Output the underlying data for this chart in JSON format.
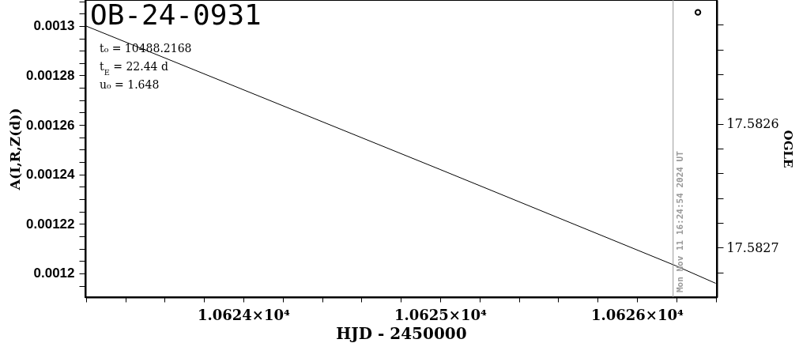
{
  "chart_data": {
    "type": "line",
    "title": "OB-24-0931",
    "xlabel": "HJD - 2450000",
    "ylabel": "A(I,R,Z(d))",
    "y2label": "OGLE",
    "annotations": [
      "t₀ = 10488.2168",
      "t$_{E}$ = 22.44 d",
      "u₀ = 1.648",
      {
        "text": "Mon Nov 11 16:24:54 2024 UT",
        "x": 10626.184,
        "y": 0.0011923
      }
    ],
    "xlim": [
      10623.197,
      10626.406
    ],
    "xticks": [
      {
        "value": 10623.2,
        "label": null
      },
      {
        "value": 10623.4,
        "label": null
      },
      {
        "value": 10623.6,
        "label": null
      },
      {
        "value": 10623.8,
        "label": null
      },
      {
        "value": 10624,
        "label": "1.0624×10⁴"
      },
      {
        "value": 10624.2,
        "label": null
      },
      {
        "value": 10624.4,
        "label": null
      },
      {
        "value": 10624.6,
        "label": null
      },
      {
        "value": 10624.8,
        "label": null
      },
      {
        "value": 10625,
        "label": "1.0625×10⁴"
      },
      {
        "value": 10625.2,
        "label": null
      },
      {
        "value": 10625.4,
        "label": null
      },
      {
        "value": 10625.6,
        "label": null
      },
      {
        "value": 10625.8,
        "label": null
      },
      {
        "value": 10626,
        "label": "1.0626×10⁴"
      },
      {
        "value": 10626.2,
        "label": null
      },
      {
        "value": 10626.4,
        "label": null
      }
    ],
    "ylim": [
      0.0011904,
      0.0013105
    ],
    "yticks": [
      {
        "value": 0.001195,
        "label": null
      },
      0.0012,
      {
        "value": 0.001205,
        "label": null
      },
      {
        "value": 0.00121,
        "label": null
      },
      {
        "value": 0.001215,
        "label": null
      },
      0.00122,
      {
        "value": 0.001225,
        "label": null
      },
      {
        "value": 0.00123,
        "label": null
      },
      {
        "value": 0.001235,
        "label": null
      },
      0.00124,
      {
        "value": 0.001245,
        "label": null
      },
      {
        "value": 0.00125,
        "label": null
      },
      {
        "value": 0.001255,
        "label": null
      },
      0.00126,
      {
        "value": 0.001265,
        "label": null
      },
      {
        "value": 0.00127,
        "label": null
      },
      {
        "value": 0.001275,
        "label": null
      },
      0.00128,
      {
        "value": 0.001285,
        "label": null
      },
      {
        "value": 0.00129,
        "label": null
      },
      {
        "value": 0.001295,
        "label": null
      },
      0.0013,
      {
        "value": 0.001305,
        "label": null
      },
      {
        "value": 0.00131,
        "label": null
      }
    ],
    "y2lim": [
      17.58274,
      17.5825
    ],
    "y2ticks": [
      {
        "value": 17.58252,
        "label": null
      },
      {
        "value": 17.58254,
        "label": null
      },
      {
        "value": 17.58256,
        "label": null
      },
      {
        "value": 17.58258,
        "label": null
      },
      17.5826,
      {
        "value": 17.58262,
        "label": null
      },
      {
        "value": 17.58264,
        "label": null
      },
      {
        "value": 17.58266,
        "label": null
      },
      {
        "value": 17.58268,
        "label": null
      },
      17.5827,
      {
        "value": 17.58272,
        "label": null
      }
    ],
    "grid": false,
    "ref_lines": [
      {
        "axis": "x",
        "value": 10626.184,
        "color": "#999999"
      }
    ],
    "series": [
      {
        "color": "#000000",
        "x": [
          10623.2,
          10625,
          10626.2,
          10626.4
        ],
        "values": [
          0.0013,
          0.001242,
          0.001203,
          0.001196
        ],
        "line_style": "solid"
      },
      {
        "type": "scatter",
        "axis": "y2",
        "color": "#000000",
        "marker": "circle",
        "x": [
          10626.31
        ],
        "values": [
          17.58251
        ]
      }
    ]
  }
}
